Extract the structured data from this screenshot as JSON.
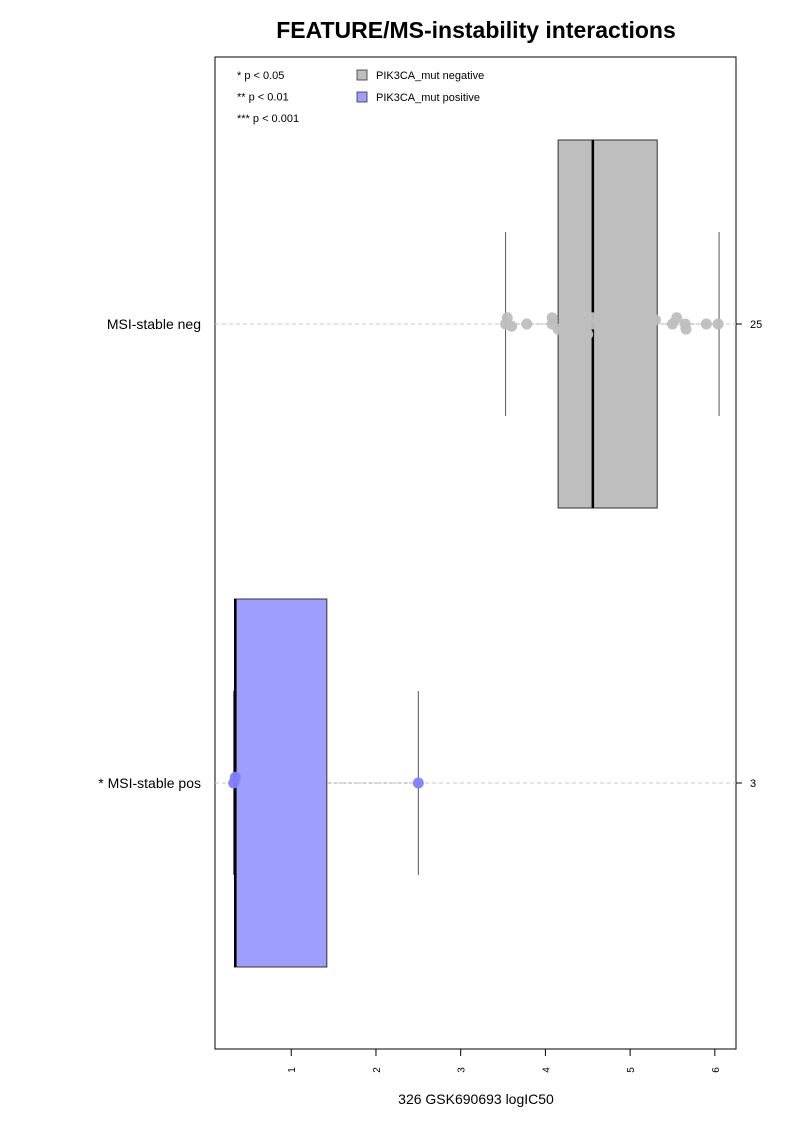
{
  "chart_data": {
    "type": "boxplot",
    "orientation": "horizontal",
    "title": "FEATURE/MS-instability interactions",
    "xlabel": "326 GSK690693 logIC50",
    "xlim": [
      0.1,
      6.25
    ],
    "x_ticks": [
      1,
      2,
      3,
      4,
      5,
      6
    ],
    "grid": false,
    "significance_legend": [
      "* p < 0.05",
      "** p < 0.01",
      "*** p < 0.001"
    ],
    "legend": [
      {
        "label": "PIK3CA_mut negative",
        "color": "#bebebe"
      },
      {
        "label": "PIK3CA_mut positive",
        "color": "#9e9eff"
      }
    ],
    "groups": [
      {
        "label": "MSI-stable neg",
        "count": "25",
        "box_color": "#bebebe",
        "point_color": "#bebebe",
        "q1": 4.15,
        "median": 4.56,
        "q3": 5.32,
        "whisker_low": 3.53,
        "whisker_high": 6.05,
        "points": [
          {
            "x": 3.55,
            "y": 0.11
          },
          {
            "x": 3.53,
            "y": 0.0
          },
          {
            "x": 3.6,
            "y": -0.04
          },
          {
            "x": 3.78,
            "y": 0.0
          },
          {
            "x": 4.08,
            "y": 0.11
          },
          {
            "x": 4.08,
            "y": 0.0
          },
          {
            "x": 4.15,
            "y": -0.09
          },
          {
            "x": 4.38,
            "y": 0.11
          },
          {
            "x": 4.38,
            "y": 0.0
          },
          {
            "x": 4.42,
            "y": 0.2
          },
          {
            "x": 4.42,
            "y": -0.09
          },
          {
            "x": 4.5,
            "y": -0.18
          },
          {
            "x": 4.56,
            "y": 0.11
          },
          {
            "x": 4.56,
            "y": 0.0
          },
          {
            "x": 4.7,
            "y": 0.0
          },
          {
            "x": 5.06,
            "y": 0.11
          },
          {
            "x": 5.05,
            "y": 0.0
          },
          {
            "x": 5.22,
            "y": 0.0
          },
          {
            "x": 5.3,
            "y": 0.07
          },
          {
            "x": 5.5,
            "y": 0.0
          },
          {
            "x": 5.55,
            "y": 0.11
          },
          {
            "x": 5.65,
            "y": 0.0
          },
          {
            "x": 5.66,
            "y": -0.09
          },
          {
            "x": 5.9,
            "y": 0.0
          },
          {
            "x": 6.04,
            "y": 0.0
          }
        ]
      },
      {
        "label": "* MSI-stable pos",
        "count": "3",
        "box_color": "#9e9eff",
        "point_color": "#8080ff",
        "q1": 0.33,
        "median": 0.34,
        "q3": 1.42,
        "whisker_low": 0.32,
        "whisker_high": 2.5,
        "points": [
          {
            "x": 0.34,
            "y": 0.1
          },
          {
            "x": 0.32,
            "y": 0.0
          },
          {
            "x": 2.5,
            "y": 0.0
          }
        ]
      }
    ]
  }
}
